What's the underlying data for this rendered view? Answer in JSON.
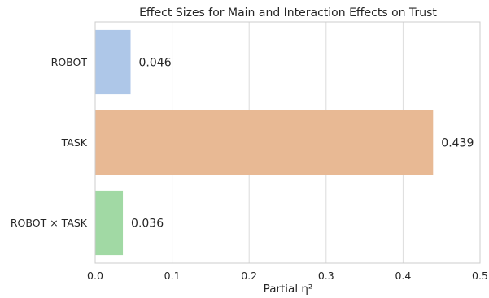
{
  "chart_data": {
    "type": "bar",
    "orientation": "horizontal",
    "title": "Effect Sizes for Main and Interaction Effects on Trust",
    "xlabel": "Partial η²",
    "ylabel": "",
    "xlim": [
      0,
      0.5
    ],
    "xticks": [
      "0.0",
      "0.1",
      "0.2",
      "0.3",
      "0.4",
      "0.5"
    ],
    "grid": true,
    "categories": [
      "ROBOT",
      "TASK",
      "ROBOT × TASK"
    ],
    "values": [
      0.046,
      0.439,
      0.036
    ],
    "value_labels": [
      "0.046",
      "0.439",
      "0.036"
    ],
    "colors": [
      "#aec7e8",
      "#e8b994",
      "#a1d9a4"
    ]
  }
}
